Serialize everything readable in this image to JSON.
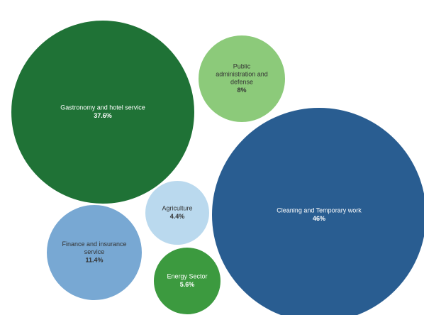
{
  "chart_data": {
    "type": "bubble",
    "title": "",
    "legend": "none",
    "value_unit": "%",
    "items": [
      {
        "label": "Gastronomy and hotel service",
        "value": 37.6,
        "display": "37.6%",
        "color": "#1f7236",
        "text_color": "#ffffff"
      },
      {
        "label": "Public administration and defense",
        "value": 8,
        "display": "8%",
        "color": "#8cca7a",
        "text_color": "#333333"
      },
      {
        "label": "Cleaning and Temporary work",
        "value": 46,
        "display": "46%",
        "color": "#295d91",
        "text_color": "#ffffff"
      },
      {
        "label": "Agriculture",
        "value": 4.4,
        "display": "4.4%",
        "color": "#bad9ee",
        "text_color": "#333333"
      },
      {
        "label": "Finance and insurance service",
        "value": 11.4,
        "display": "11.4%",
        "color": "#78a8d3",
        "text_color": "#333333"
      },
      {
        "label": "Energy Sector",
        "value": 5.6,
        "display": "5.6%",
        "color": "#3c9a3f",
        "text_color": "#ffffff"
      }
    ]
  }
}
